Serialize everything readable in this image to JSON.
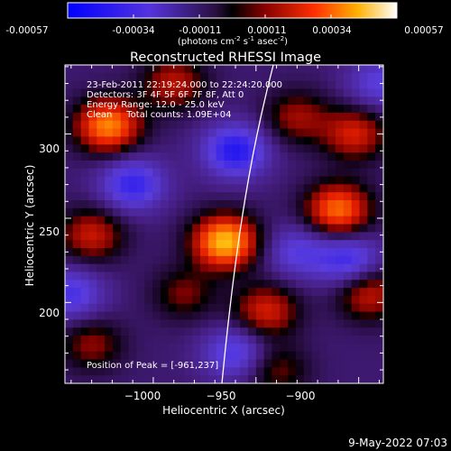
{
  "chart_data": {
    "type": "heatmap",
    "title": "Reconstructed RHESSI Image",
    "colorbar": {
      "ticks": [
        "-0.00057",
        "-0.00034",
        "-0.00011",
        "0.00011",
        "0.00034",
        "0.00057"
      ],
      "range": [
        -0.00057,
        0.00057
      ],
      "unit_label_parts": [
        "(photons cm",
        "-2",
        " s",
        "-1",
        " asec",
        "-2",
        ")"
      ]
    },
    "xlabel": "Heliocentric X (arcsec)",
    "ylabel": "Heliocentric Y (arcsec)",
    "x_ticks": [
      -1000,
      -950,
      -900
    ],
    "x_tick_labels": [
      "−1000",
      "−950",
      "−900"
    ],
    "y_ticks": [
      200,
      250,
      300
    ],
    "y_tick_labels": [
      "200",
      "250",
      "300"
    ],
    "xlim": [
      -1043,
      -888
    ],
    "ylim": [
      152,
      341
    ],
    "info_lines": [
      "23-Feb-2011 22:19:24.000 to 22:24:20.000",
      "Detectors: 3F 4F 5F 6F 7F 8F, Att 0",
      "Energy Range: 12.0 - 25.0 keV",
      "Clean     Total counts: 1.09E+04"
    ],
    "peak_label": "Position of Peak = [-961,237]",
    "peak": [
      -961,
      237
    ],
    "blobs": [
      {
        "x": -965,
        "y": 236,
        "v": 0.00057
      },
      {
        "x": -1022,
        "y": 305,
        "v": 0.00048
      },
      {
        "x": -910,
        "y": 255,
        "v": 0.00044
      },
      {
        "x": -902,
        "y": 300,
        "v": 0.0003
      },
      {
        "x": -945,
        "y": 195,
        "v": 0.0003
      },
      {
        "x": -1030,
        "y": 240,
        "v": 0.00028
      },
      {
        "x": -990,
        "y": 330,
        "v": 0.00026
      },
      {
        "x": -895,
        "y": 205,
        "v": 0.00028
      },
      {
        "x": -1030,
        "y": 175,
        "v": 0.0002
      },
      {
        "x": -985,
        "y": 205,
        "v": 0.00018
      },
      {
        "x": -930,
        "y": 310,
        "v": 0.00022
      },
      {
        "x": -940,
        "y": 160,
        "v": 0.00018
      },
      {
        "x": -1010,
        "y": 270,
        "v": -0.0003
      },
      {
        "x": -960,
        "y": 290,
        "v": -0.00035
      },
      {
        "x": -905,
        "y": 225,
        "v": -0.00028
      },
      {
        "x": -960,
        "y": 170,
        "v": -0.00025
      },
      {
        "x": -1040,
        "y": 205,
        "v": -0.00025
      },
      {
        "x": -930,
        "y": 230,
        "v": -0.0002
      },
      {
        "x": -890,
        "y": 330,
        "v": -0.0002
      }
    ]
  },
  "footer": {
    "date": "9-May-2022 07:03"
  }
}
